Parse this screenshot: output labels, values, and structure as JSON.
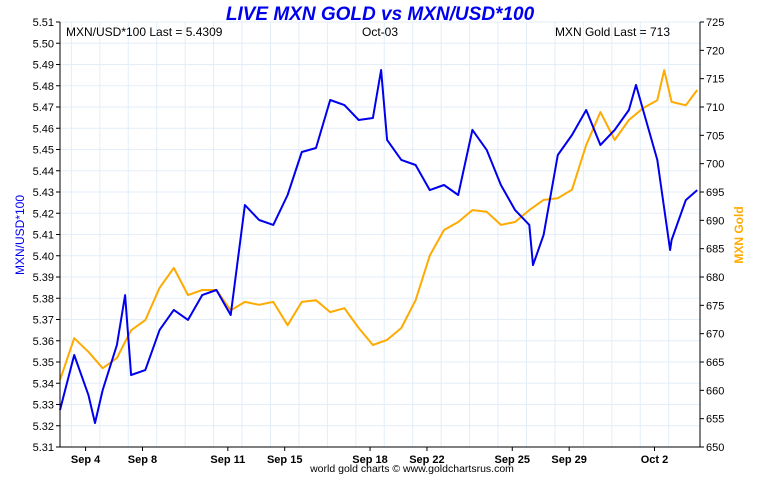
{
  "chart_data": {
    "type": "line",
    "title": "LIVE MXN GOLD vs MXN/USD*100",
    "header": {
      "left": "MXN/USD*100 Last = 5.4309",
      "center": "Oct-03",
      "right": "MXN Gold Last = 713"
    },
    "footer": "world gold charts © www.goldchartsrus.com",
    "ylabel_left": "MXN/USD*100",
    "ylabel_right": "MXN Gold",
    "x_unit": "trading days since Sep 3",
    "xlim": [
      0.1,
      22.6
    ],
    "ylim_left": [
      5.31,
      5.51
    ],
    "ylim_right": [
      650,
      725
    ],
    "grid": true,
    "x_ticks": [
      {
        "day": 1,
        "label": "Sep 4"
      },
      {
        "day": 3,
        "label": "Sep 8"
      },
      {
        "day": 6,
        "label": "Sep 11"
      },
      {
        "day": 8,
        "label": "Sep 15"
      },
      {
        "day": 11,
        "label": "Sep 18"
      },
      {
        "day": 13,
        "label": "Sep 22"
      },
      {
        "day": 16,
        "label": "Sep 25"
      },
      {
        "day": 18,
        "label": "Sep 29"
      },
      {
        "day": 21,
        "label": "Oct 2"
      }
    ],
    "left_ticks": [
      "5.31",
      "5.32",
      "5.33",
      "5.34",
      "5.35",
      "5.36",
      "5.37",
      "5.38",
      "5.39",
      "5.40",
      "5.41",
      "5.42",
      "5.43",
      "5.44",
      "5.45",
      "5.46",
      "5.47",
      "5.48",
      "5.49",
      "5.50",
      "5.51"
    ],
    "right_ticks": [
      "650",
      "655",
      "660",
      "665",
      "670",
      "675",
      "680",
      "685",
      "690",
      "695",
      "700",
      "705",
      "710",
      "715",
      "720",
      "725"
    ],
    "series": [
      {
        "name": "MXN/USD*100",
        "axis": "left",
        "color": "#0000ee",
        "x": [
          0.1,
          0.6,
          1.1,
          1.33,
          1.6,
          2.1,
          2.39,
          2.6,
          3.1,
          3.6,
          4.1,
          4.6,
          5.1,
          5.6,
          6.1,
          6.6,
          7.1,
          7.6,
          8.1,
          8.6,
          9.1,
          9.6,
          10.1,
          10.6,
          11.1,
          11.39,
          11.6,
          12.1,
          12.6,
          13.1,
          13.6,
          14.1,
          14.6,
          15.1,
          15.6,
          16.1,
          16.6,
          16.73,
          17.1,
          17.6,
          18.1,
          18.6,
          19.1,
          19.6,
          20.1,
          20.35,
          20.6,
          21.1,
          21.55,
          21.6,
          22.1,
          22.5
        ],
        "y": [
          5.3274,
          5.3533,
          5.3345,
          5.3213,
          5.3368,
          5.358,
          5.3815,
          5.3439,
          5.3462,
          5.3651,
          5.3745,
          5.3698,
          5.3815,
          5.3839,
          5.3721,
          5.4239,
          5.4168,
          5.4145,
          5.4286,
          5.4488,
          5.4507,
          5.4733,
          5.4709,
          5.4639,
          5.4648,
          5.4874,
          5.4545,
          5.4451,
          5.4427,
          5.4309,
          5.4333,
          5.4286,
          5.4592,
          5.4498,
          5.4333,
          5.4215,
          5.4145,
          5.3956,
          5.4098,
          5.4474,
          5.4568,
          5.4686,
          5.4521,
          5.4592,
          5.4686,
          5.4804,
          5.4686,
          5.4451,
          5.4027,
          5.4074,
          5.4262,
          5.4309
        ]
      },
      {
        "name": "MXN Gold",
        "axis": "right",
        "color": "#ffaa00",
        "x": [
          0.1,
          0.6,
          1.1,
          1.6,
          2.1,
          2.6,
          3.1,
          3.6,
          4.1,
          4.6,
          5.1,
          5.6,
          6.1,
          6.6,
          7.1,
          7.6,
          8.1,
          8.6,
          9.1,
          9.6,
          10.1,
          10.6,
          11.1,
          11.6,
          12.1,
          12.6,
          13.1,
          13.6,
          14.1,
          14.6,
          15.1,
          15.6,
          16.1,
          16.6,
          17.1,
          17.6,
          18.1,
          18.6,
          19.1,
          19.6,
          20.1,
          20.6,
          21.1,
          21.34,
          21.6,
          22.1,
          22.5
        ],
        "y": [
          661.8,
          669.2,
          666.8,
          663.9,
          665.7,
          670.6,
          672.4,
          678.1,
          681.6,
          676.8,
          677.7,
          677.7,
          674.1,
          675.6,
          675.1,
          675.6,
          671.5,
          675.6,
          675.9,
          673.8,
          674.5,
          671.0,
          668.0,
          668.9,
          671.0,
          675.9,
          683.8,
          688.3,
          689.7,
          691.8,
          691.5,
          689.2,
          689.7,
          691.8,
          693.6,
          693.9,
          695.4,
          703.3,
          709.1,
          704.2,
          707.7,
          709.8,
          711.2,
          716.5,
          710.9,
          710.3,
          713
        ]
      }
    ]
  }
}
